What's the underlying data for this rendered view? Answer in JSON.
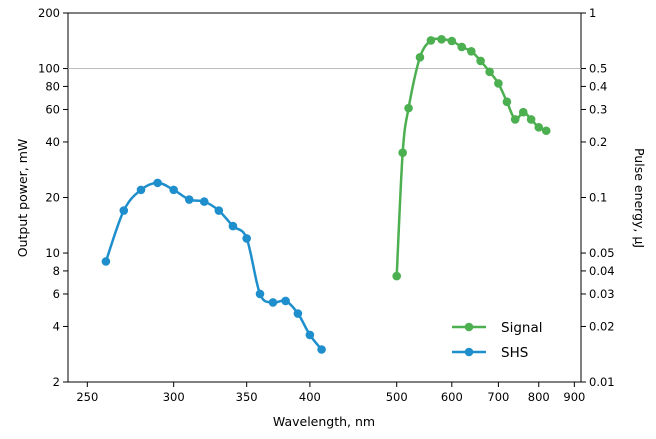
{
  "chart_data": {
    "type": "line",
    "xlabel": "Wavelength, nm",
    "ylabel": "Output power, mW",
    "y2label": "Pulse energy, µJ",
    "x_scale": "broken-log",
    "y_scale": "log",
    "y2_scale": "log",
    "x_segments": [
      [
        240,
        420
      ],
      [
        420,
        920
      ]
    ],
    "x_break": "between 420 and 500",
    "ylim": [
      2,
      200
    ],
    "y2lim": [
      0.01,
      1
    ],
    "grid": "horizontal at 100 mW",
    "legend_position": "bottom-right",
    "x_ticks": [
      250,
      300,
      350,
      400,
      500,
      600,
      700,
      800,
      900
    ],
    "x_tick_labels": [
      "250",
      "300",
      "350",
      "400",
      "500",
      "600",
      "700",
      "800",
      "900"
    ],
    "y_ticks": [
      2,
      4,
      6,
      8,
      10,
      20,
      40,
      60,
      80,
      100,
      200
    ],
    "y_tick_labels": [
      "2",
      "4",
      "6",
      "8",
      "10",
      "20",
      "40",
      "60",
      "80",
      "100",
      "200"
    ],
    "y2_ticks": [
      0.01,
      0.02,
      0.03,
      0.04,
      0.05,
      0.1,
      0.2,
      0.3,
      0.4,
      0.5,
      1
    ],
    "y2_tick_labels": [
      "0.01",
      "0.02",
      "0.03",
      "0.04",
      "0.05",
      "0.1",
      "0.2",
      "0.3",
      "0.4",
      "0.5",
      "1"
    ],
    "series": [
      {
        "name": "Signal",
        "color": "#4caf50",
        "x": [
          500,
          510,
          520,
          540,
          560,
          580,
          600,
          620,
          640,
          660,
          680,
          700,
          720,
          740,
          760,
          780,
          800,
          820
        ],
        "y": [
          7.5,
          35,
          61,
          115,
          142,
          144,
          141,
          131,
          124,
          110,
          96,
          83,
          66,
          53,
          58,
          53,
          48,
          46
        ]
      },
      {
        "name": "SHS",
        "color": "#1e8fcc",
        "x": [
          260,
          270,
          280,
          290,
          300,
          310,
          320,
          330,
          340,
          350,
          360,
          370,
          380,
          390,
          400,
          410
        ],
        "y": [
          9,
          17,
          22,
          24,
          22,
          19.5,
          19,
          17,
          14,
          12,
          6,
          5.4,
          5.5,
          4.7,
          3.6,
          3
        ]
      }
    ]
  }
}
